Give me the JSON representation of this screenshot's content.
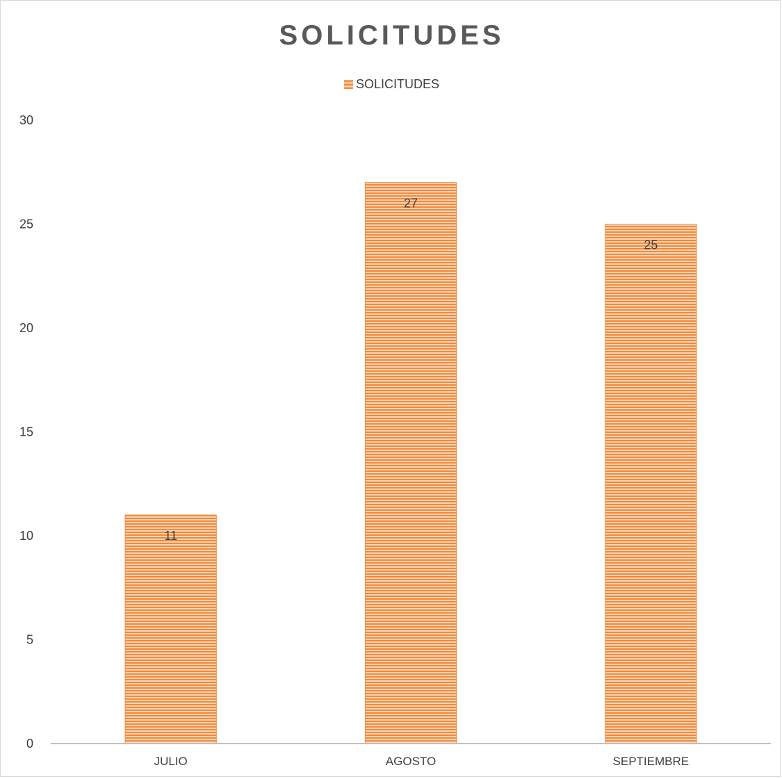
{
  "chart_data": {
    "type": "bar",
    "title": "SOLICITUDES",
    "categories": [
      "JULIO",
      "AGOSTO",
      "SEPTIEMBRE"
    ],
    "series": [
      {
        "name": "SOLICITUDES",
        "values": [
          11,
          27,
          25
        ]
      }
    ],
    "data_labels": [
      "11",
      "27",
      "25"
    ],
    "yticks": [
      0,
      5,
      10,
      15,
      20,
      25,
      30
    ],
    "ylim": [
      0,
      30
    ],
    "grid": false,
    "legend_position": "top",
    "colors": {
      "bar": "#f08a3c",
      "bar_stripe": "#fbd3b4",
      "axis": "#bfbfbf",
      "text": "#404040",
      "title": "#595959"
    }
  }
}
